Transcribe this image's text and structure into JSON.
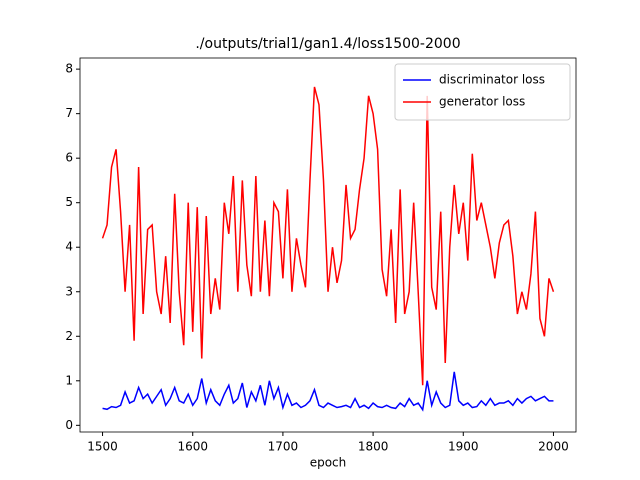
{
  "chart_data": {
    "type": "line",
    "title": "./outputs/trial1/gan1.4/loss1500-2000",
    "xlabel": "epoch",
    "x": [
      1500,
      1505,
      1510,
      1515,
      1520,
      1525,
      1530,
      1535,
      1540,
      1545,
      1550,
      1555,
      1560,
      1565,
      1570,
      1575,
      1580,
      1585,
      1590,
      1595,
      1600,
      1605,
      1610,
      1615,
      1620,
      1625,
      1630,
      1635,
      1640,
      1645,
      1650,
      1655,
      1660,
      1665,
      1670,
      1675,
      1680,
      1685,
      1690,
      1695,
      1700,
      1705,
      1710,
      1715,
      1720,
      1725,
      1730,
      1735,
      1740,
      1745,
      1750,
      1755,
      1760,
      1765,
      1770,
      1775,
      1780,
      1785,
      1790,
      1795,
      1800,
      1805,
      1810,
      1815,
      1820,
      1825,
      1830,
      1835,
      1840,
      1845,
      1850,
      1855,
      1860,
      1865,
      1870,
      1875,
      1880,
      1885,
      1890,
      1895,
      1900,
      1905,
      1910,
      1915,
      1920,
      1925,
      1930,
      1935,
      1940,
      1945,
      1950,
      1955,
      1960,
      1965,
      1970,
      1975,
      1980,
      1985,
      1990,
      1995,
      2000
    ],
    "series": [
      {
        "name": "discriminator loss",
        "color": "#0000ff",
        "values": [
          0.38,
          0.36,
          0.42,
          0.4,
          0.45,
          0.75,
          0.5,
          0.55,
          0.85,
          0.6,
          0.7,
          0.5,
          0.65,
          0.8,
          0.45,
          0.6,
          0.85,
          0.55,
          0.5,
          0.7,
          0.45,
          0.6,
          1.05,
          0.5,
          0.8,
          0.55,
          0.45,
          0.7,
          0.9,
          0.5,
          0.6,
          0.95,
          0.4,
          0.75,
          0.55,
          0.9,
          0.45,
          1.0,
          0.6,
          0.85,
          0.4,
          0.7,
          0.45,
          0.5,
          0.4,
          0.45,
          0.55,
          0.8,
          0.45,
          0.4,
          0.5,
          0.45,
          0.4,
          0.42,
          0.45,
          0.4,
          0.6,
          0.4,
          0.45,
          0.38,
          0.5,
          0.42,
          0.4,
          0.45,
          0.4,
          0.38,
          0.5,
          0.42,
          0.6,
          0.45,
          0.5,
          0.35,
          1.0,
          0.45,
          0.75,
          0.5,
          0.4,
          0.45,
          1.2,
          0.55,
          0.45,
          0.5,
          0.4,
          0.42,
          0.55,
          0.45,
          0.6,
          0.45,
          0.5,
          0.5,
          0.55,
          0.45,
          0.6,
          0.5,
          0.6,
          0.65,
          0.55,
          0.6,
          0.65,
          0.55,
          0.55
        ]
      },
      {
        "name": "generator loss",
        "color": "#ff0000",
        "values": [
          4.2,
          4.5,
          5.8,
          6.2,
          4.8,
          3.0,
          4.5,
          1.9,
          5.8,
          2.5,
          4.4,
          4.5,
          3.0,
          2.5,
          3.8,
          2.3,
          5.2,
          3.0,
          1.8,
          5.0,
          2.1,
          4.9,
          1.5,
          4.7,
          2.5,
          3.3,
          2.6,
          5.0,
          4.3,
          5.6,
          3.0,
          5.5,
          3.6,
          2.9,
          5.6,
          3.0,
          4.6,
          2.9,
          5.0,
          4.8,
          3.3,
          5.3,
          3.0,
          4.2,
          3.6,
          3.1,
          5.5,
          7.6,
          7.2,
          5.5,
          3.0,
          4.0,
          3.2,
          3.7,
          5.4,
          4.2,
          4.4,
          5.3,
          6.0,
          7.4,
          7.0,
          6.2,
          3.5,
          2.9,
          4.4,
          2.3,
          5.3,
          2.5,
          3.0,
          5.0,
          3.0,
          0.9,
          7.4,
          3.1,
          2.6,
          4.8,
          1.4,
          4.0,
          5.4,
          4.3,
          5.0,
          3.7,
          6.1,
          4.6,
          5.0,
          4.5,
          4.0,
          3.3,
          4.1,
          4.5,
          4.6,
          3.8,
          2.5,
          3.0,
          2.6,
          3.4,
          4.8,
          2.4,
          2.0,
          3.3,
          3.0
        ]
      }
    ],
    "xlim": [
      1475,
      2025
    ],
    "xticks": [
      1500,
      1600,
      1700,
      1800,
      1900,
      2000
    ],
    "ylim": [
      -0.15,
      8.25
    ],
    "yticks": [
      0,
      1,
      2,
      3,
      4,
      5,
      6,
      7,
      8
    ],
    "legend": "upper right"
  }
}
